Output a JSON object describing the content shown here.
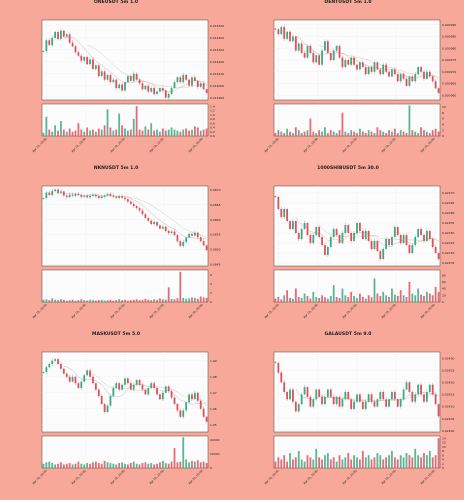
{
  "colors": {
    "background": "#f8a898",
    "plot_bg": "#fcfcfc",
    "up": "#3ea882",
    "down": "#e0505a",
    "ma_fast": "#b8b8b8",
    "ma_slow": "#d8c8b8",
    "grid": "#e2e2e2"
  },
  "chart_data": [
    {
      "type": "candlestick",
      "title": "ONEUSDT 5m 1.0",
      "ylabel": "Price",
      "volume_label": "Volume  1e7",
      "y_ticks": [
        "0.016500",
        "0.016400",
        "0.016300",
        "0.016200",
        "0.016100",
        "0.016000",
        "0.015900"
      ],
      "ylim": [
        0.01588,
        0.01655
      ],
      "vol_ticks": [
        "1.4",
        "1.2",
        "1.0",
        "0.8",
        "0.6",
        "0.4",
        "0.2",
        "0.0"
      ],
      "vol_max": 1.5,
      "x_ticks": [
        "Apr 19, 16:00",
        "Apr 19, 18:00",
        "Apr 19, 20:00",
        "Apr 19, 22:00",
        "Apr 20, 00:00"
      ],
      "close": [
        0.01629,
        0.01638,
        0.01634,
        0.0164,
        0.01645,
        0.01639,
        0.01646,
        0.01641,
        0.01643,
        0.01636,
        0.01633,
        0.01628,
        0.01625,
        0.01621,
        0.01624,
        0.01618,
        0.01622,
        0.01614,
        0.01617,
        0.01608,
        0.01612,
        0.01605,
        0.01609,
        0.01603,
        0.01605,
        0.01598,
        0.01601,
        0.01596,
        0.01603,
        0.01608,
        0.01604,
        0.0161,
        0.01605,
        0.01602,
        0.01597,
        0.016,
        0.01595,
        0.01598,
        0.01593,
        0.01595,
        0.01598,
        0.01596,
        0.0159,
        0.01593,
        0.01598,
        0.01603,
        0.01607,
        0.01603,
        0.01609,
        0.01605,
        0.016,
        0.01607,
        0.01604,
        0.01599,
        0.01602,
        0.01597,
        0.01594
      ],
      "volume": [
        0.15,
        0.9,
        0.3,
        0.2,
        0.5,
        0.25,
        0.7,
        0.3,
        0.2,
        0.35,
        0.2,
        0.25,
        0.6,
        0.3,
        0.2,
        0.4,
        0.25,
        0.3,
        0.2,
        0.35,
        0.3,
        0.5,
        1.25,
        0.4,
        0.25,
        0.3,
        1.05,
        0.5,
        0.35,
        0.25,
        0.3,
        0.8,
        1.4,
        0.3,
        0.25,
        0.45,
        0.3,
        0.6,
        0.25,
        0.3,
        0.2,
        0.35,
        0.25,
        0.3,
        0.4,
        0.3,
        0.25,
        0.2,
        0.3,
        0.35,
        0.25,
        0.3,
        0.45,
        0.4,
        0.25,
        0.3,
        0.35
      ]
    },
    {
      "type": "candlestick",
      "title": "DENTUSDT 5m 1.0",
      "ylabel": "Price",
      "volume_label": "Volume  1e8",
      "y_ticks": [
        "0.000990",
        "0.000985",
        "0.000980",
        "0.000975",
        "0.000970",
        "0.000965",
        "0.000960"
      ],
      "ylim": [
        0.000958,
        0.000992
      ],
      "vol_ticks": [
        "10",
        "8",
        "6",
        "4",
        "2",
        "0"
      ],
      "vol_max": 11,
      "x_ticks": [
        "Apr 19, 16:00",
        "Apr 19, 18:00",
        "Apr 19, 20:00",
        "Apr 19, 22:00",
        "Apr 20, 00:00"
      ],
      "close": [
        0.000988,
        0.000986,
        0.000989,
        0.000984,
        0.000987,
        0.000983,
        0.000985,
        0.000979,
        0.000982,
        0.000978,
        0.000976,
        0.000981,
        0.000978,
        0.000974,
        0.000977,
        0.000973,
        0.000979,
        0.000983,
        0.000978,
        0.000975,
        0.000979,
        0.000981,
        0.000976,
        0.000972,
        0.000975,
        0.000973,
        0.000976,
        0.000973,
        0.000971,
        0.000974,
        0.000972,
        0.000969,
        0.000972,
        0.00097,
        0.000974,
        0.000971,
        0.000969,
        0.000973,
        0.00097,
        0.000968,
        0.000971,
        0.000969,
        0.000966,
        0.000969,
        0.000967,
        0.000964,
        0.000968,
        0.000966,
        0.000969,
        0.000972,
        0.00097,
        0.000967,
        0.00097,
        0.000968,
        0.000966,
        0.000963,
        0.000961
      ],
      "volume": [
        1,
        2,
        1.5,
        1,
        2.5,
        1.5,
        1,
        3,
        2,
        1,
        1.5,
        2,
        6,
        1.5,
        1,
        2,
        1.5,
        3,
        1,
        2,
        1.5,
        1,
        2,
        8,
        1.5,
        1,
        2,
        1.5,
        1,
        2.5,
        1.5,
        1,
        2,
        1.5,
        1,
        3,
        2,
        1.5,
        1,
        2,
        1.5,
        2.5,
        1,
        2,
        1.5,
        1,
        10.5,
        2,
        1.5,
        1,
        3,
        2,
        1.5,
        1,
        2,
        2.5,
        1.5
      ]
    },
    {
      "type": "candlestick",
      "title": "NKNUSDT 5m 1.0",
      "ylabel": "Price",
      "volume_label": "Volume  1e6",
      "y_ticks": [
        "0.0870",
        "0.0865",
        "0.0860",
        "0.0855",
        "0.0850",
        "0.0845"
      ],
      "ylim": [
        0.08445,
        0.08712
      ],
      "vol_ticks": [
        "6",
        "4",
        "2",
        "0"
      ],
      "vol_max": 7,
      "x_ticks": [
        "Apr 19, 16:00",
        "Apr 19, 18:00",
        "Apr 19, 20:00",
        "Apr 19, 22:00",
        "Apr 20, 00:00"
      ],
      "close": [
        0.08672,
        0.0869,
        0.08682,
        0.08695,
        0.087,
        0.08688,
        0.08694,
        0.0868,
        0.08675,
        0.08683,
        0.08679,
        0.08686,
        0.08682,
        0.08676,
        0.0868,
        0.08674,
        0.08679,
        0.08683,
        0.08678,
        0.08672,
        0.08676,
        0.08681,
        0.08686,
        0.0868,
        0.08676,
        0.08672,
        0.08678,
        0.08673,
        0.08668,
        0.0866,
        0.08652,
        0.08645,
        0.08638,
        0.0863,
        0.08618,
        0.08605,
        0.08596,
        0.08585,
        0.08592,
        0.0858,
        0.0857,
        0.08576,
        0.08562,
        0.08555,
        0.0856,
        0.08548,
        0.08528,
        0.08512,
        0.08525,
        0.0854,
        0.08552,
        0.08546,
        0.08556,
        0.08541,
        0.08528,
        0.08514,
        0.08498
      ],
      "volume": [
        0.5,
        0.6,
        0.4,
        0.8,
        0.5,
        0.4,
        0.6,
        0.5,
        0.3,
        0.4,
        0.5,
        0.3,
        0.4,
        0.6,
        0.4,
        0.3,
        0.5,
        0.4,
        0.3,
        0.4,
        0.5,
        0.3,
        0.4,
        0.5,
        0.3,
        0.4,
        0.6,
        0.4,
        0.5,
        0.3,
        0.4,
        0.5,
        0.6,
        0.4,
        0.5,
        0.7,
        0.5,
        0.4,
        0.6,
        0.5,
        0.8,
        0.6,
        0.5,
        3.2,
        0.7,
        0.6,
        0.8,
        6.6,
        0.9,
        0.7,
        0.8,
        1.0,
        0.9,
        0.7,
        1.2,
        1.0,
        0.9
      ]
    },
    {
      "type": "candlestick",
      "title": "1000SHIBUSDT 5m 30.0",
      "ylabel": "Price",
      "volume_label": "Volume  1e6",
      "y_ticks": [
        "0.02270",
        "0.02265",
        "0.02260",
        "0.02255",
        "0.02250",
        "0.02245",
        "0.02240",
        "0.02235"
      ],
      "ylim": [
        0.022335,
        0.022735
      ],
      "vol_ticks": [
        "80",
        "60",
        "40",
        "20",
        "0"
      ],
      "vol_max": 95,
      "x_ticks": [
        "Apr 19, 16:00",
        "Apr 19, 18:00",
        "Apr 19, 20:00",
        "Apr 19, 22:00",
        "Apr 20, 00:00"
      ],
      "close": [
        0.02268,
        0.02262,
        0.02258,
        0.02262,
        0.02256,
        0.02252,
        0.02256,
        0.0225,
        0.02247,
        0.02252,
        0.02255,
        0.02249,
        0.02245,
        0.02249,
        0.02253,
        0.02248,
        0.02244,
        0.02239,
        0.02243,
        0.02248,
        0.02252,
        0.02249,
        0.02245,
        0.0225,
        0.02254,
        0.0225,
        0.02246,
        0.0225,
        0.02255,
        0.02251,
        0.02247,
        0.02251,
        0.02246,
        0.02242,
        0.02246,
        0.02241,
        0.02237,
        0.02242,
        0.02247,
        0.02244,
        0.02248,
        0.02253,
        0.02249,
        0.02245,
        0.02249,
        0.02244,
        0.0224,
        0.02244,
        0.02248,
        0.02252,
        0.02249,
        0.02246,
        0.02251,
        0.02247,
        0.02243,
        0.0224,
        0.02237
      ],
      "volume": [
        10,
        15,
        8,
        20,
        35,
        12,
        10,
        40,
        15,
        12,
        25,
        18,
        10,
        30,
        15,
        12,
        20,
        14,
        10,
        18,
        50,
        15,
        12,
        40,
        20,
        15,
        30,
        18,
        12,
        25,
        15,
        10,
        20,
        14,
        70,
        25,
        18,
        30,
        20,
        15,
        40,
        22,
        18,
        35,
        20,
        15,
        60,
        25,
        20,
        40,
        22,
        18,
        30,
        25,
        20,
        45,
        30
      ]
    },
    {
      "type": "candlestick",
      "title": "MASKUSDT 5m 5.0",
      "ylabel": "Price",
      "volume_label": "Volume",
      "y_ticks": [
        "1.99",
        "1.98",
        "1.97",
        "1.96",
        "1.95"
      ],
      "ylim": [
        1.9455,
        1.9955
      ],
      "vol_ticks": [
        "40000",
        "20000",
        "0"
      ],
      "vol_max": 45000,
      "x_ticks": [
        "Apr 19, 16:00",
        "Apr 19, 18:00",
        "Apr 19, 20:00",
        "Apr 19, 22:00",
        "Apr 20, 00:00"
      ],
      "close": [
        1.983,
        1.986,
        1.988,
        1.99,
        1.991,
        1.988,
        1.985,
        1.982,
        1.98,
        1.977,
        1.98,
        1.976,
        1.973,
        1.977,
        1.981,
        1.984,
        1.98,
        1.976,
        1.972,
        1.968,
        1.963,
        1.958,
        1.962,
        1.968,
        1.973,
        1.976,
        1.972,
        1.975,
        1.979,
        1.976,
        1.972,
        1.975,
        1.978,
        1.975,
        1.972,
        1.969,
        1.973,
        1.976,
        1.973,
        1.969,
        1.966,
        1.97,
        1.974,
        1.971,
        1.967,
        1.963,
        1.959,
        1.955,
        1.959,
        1.964,
        1.969,
        1.966,
        1.97,
        1.965,
        1.96,
        1.955,
        1.952
      ],
      "volume": [
        6000,
        8000,
        9000,
        7000,
        5000,
        6000,
        8000,
        5000,
        6000,
        7000,
        5000,
        6000,
        9000,
        6000,
        5000,
        7000,
        6000,
        8000,
        9000,
        7000,
        6000,
        10000,
        8000,
        7000,
        6000,
        5000,
        7000,
        8000,
        6000,
        5000,
        7000,
        9000,
        6000,
        5000,
        7000,
        8000,
        6000,
        7000,
        5000,
        6000,
        8000,
        10000,
        7000,
        6000,
        9000,
        28000,
        8000,
        9000,
        43000,
        12000,
        8000,
        10000,
        9000,
        11000,
        8000,
        9000,
        7000
      ]
    },
    {
      "type": "candlestick",
      "title": "GALAUSDT 5m 9.0",
      "ylabel": "Price",
      "volume_label": "Volume  1e6",
      "y_ticks": [
        "0.02430",
        "0.02425",
        "0.02420",
        "0.02415",
        "0.02410",
        "0.02405",
        "0.02400"
      ],
      "ylim": [
        0.023995,
        0.024325
      ],
      "vol_ticks": [
        "14",
        "12",
        "10",
        "8",
        "6",
        "4",
        "2",
        "0"
      ],
      "vol_max": 15,
      "x_ticks": [
        "Apr 19, 16:00",
        "Apr 19, 18:00",
        "Apr 19, 20:00",
        "Apr 19, 22:00",
        "Apr 20, 00:00"
      ],
      "close": [
        0.02428,
        0.02424,
        0.0242,
        0.02416,
        0.02413,
        0.02417,
        0.02412,
        0.02408,
        0.02411,
        0.02415,
        0.02418,
        0.02414,
        0.0241,
        0.02413,
        0.02417,
        0.02414,
        0.02411,
        0.02414,
        0.02417,
        0.02414,
        0.02411,
        0.02414,
        0.0241,
        0.02413,
        0.02416,
        0.02413,
        0.02409,
        0.02412,
        0.02415,
        0.02412,
        0.02409,
        0.02412,
        0.02415,
        0.02412,
        0.0241,
        0.02413,
        0.02416,
        0.02413,
        0.0241,
        0.02413,
        0.02416,
        0.02413,
        0.0241,
        0.02413,
        0.02417,
        0.0242,
        0.02416,
        0.02412,
        0.02415,
        0.02419,
        0.02415,
        0.02412,
        0.02416,
        0.02419,
        0.02415,
        0.02411,
        0.02406
      ],
      "volume": [
        3,
        5,
        4,
        6,
        3,
        7,
        4,
        5,
        8,
        4,
        3,
        6,
        5,
        4,
        9,
        5,
        4,
        6,
        7,
        4,
        5,
        3,
        6,
        4,
        5,
        7,
        4,
        6,
        5,
        4,
        8,
        5,
        6,
        4,
        5,
        7,
        6,
        4,
        5,
        6,
        8,
        5,
        4,
        6,
        5,
        7,
        6,
        5,
        9,
        6,
        5,
        7,
        6,
        8,
        5,
        6,
        14
      ]
    }
  ]
}
